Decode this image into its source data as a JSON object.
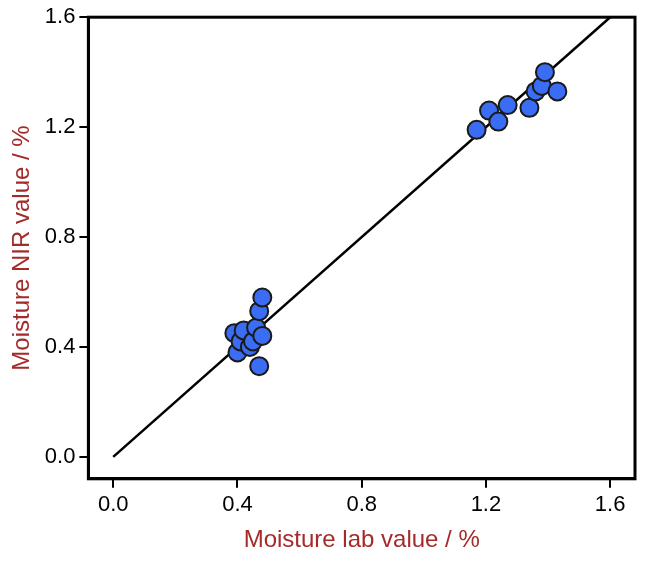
{
  "chart_data": {
    "type": "scatter",
    "xlabel": "Moisture lab value / %",
    "ylabel": "Moisture NIR value / %",
    "xlim": [
      -0.08,
      1.68
    ],
    "ylim": [
      -0.08,
      1.6
    ],
    "xticks": [
      {
        "value": 0,
        "label": "0.0"
      },
      0.4,
      0.8,
      1.2,
      1.6
    ],
    "yticks": [
      {
        "value": 0,
        "label": "0.0"
      },
      0.4,
      0.8,
      1.2,
      1.6
    ],
    "grid": false,
    "series": [
      {
        "type": "scatter",
        "color": "#3a6cf4",
        "marker": "circle",
        "x": [
          0.39,
          0.4,
          0.41,
          0.42,
          0.44,
          0.45,
          0.46,
          0.47,
          0.47,
          0.48,
          0.48,
          1.17,
          1.21,
          1.24,
          1.27,
          1.34,
          1.36,
          1.38,
          1.39,
          1.43
        ],
        "values": [
          0.45,
          0.38,
          0.42,
          0.46,
          0.4,
          0.42,
          0.47,
          0.53,
          0.33,
          0.58,
          0.44,
          1.19,
          1.26,
          1.22,
          1.28,
          1.27,
          1.33,
          1.35,
          1.4,
          1.33
        ]
      },
      {
        "type": "line",
        "color": "#000000",
        "line_style": "solid",
        "x": [
          0,
          1.6
        ],
        "values": [
          0,
          1.6
        ]
      }
    ]
  }
}
